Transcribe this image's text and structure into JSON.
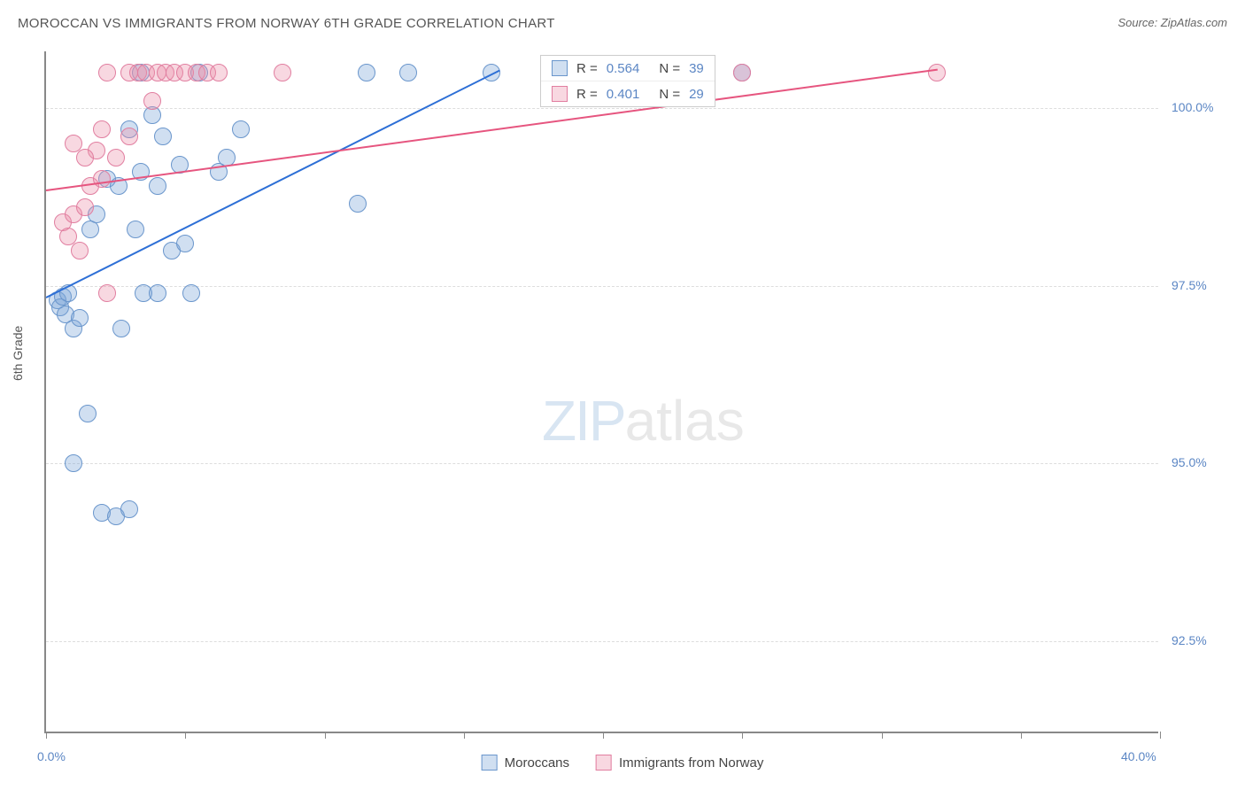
{
  "title": "MOROCCAN VS IMMIGRANTS FROM NORWAY 6TH GRADE CORRELATION CHART",
  "source": "Source: ZipAtlas.com",
  "y_axis_label": "6th Grade",
  "watermark": {
    "part1": "ZIP",
    "part2": "atlas"
  },
  "chart": {
    "type": "scatter",
    "xlim": [
      0,
      40
    ],
    "ylim": [
      91.2,
      100.8
    ],
    "x_ticks": [
      0,
      5,
      10,
      15,
      20,
      25,
      30,
      35,
      40
    ],
    "x_tick_labels": {
      "0": "0.0%",
      "40": "40.0%"
    },
    "y_ticks": [
      92.5,
      95.0,
      97.5,
      100.0
    ],
    "y_tick_labels": [
      "92.5%",
      "95.0%",
      "97.5%",
      "100.0%"
    ],
    "background_color": "#ffffff",
    "grid_color": "#dddddd",
    "axis_color": "#888888",
    "tick_label_color": "#5b86c4",
    "marker_size": 20,
    "series": [
      {
        "name": "Moroccans",
        "fill_color": "rgba(121,163,214,0.35)",
        "border_color": "#6a96cc",
        "line_color": "#2d6fd6",
        "R": "0.564",
        "N": "39",
        "trend": {
          "x1": 0,
          "y1": 97.35,
          "x2": 16.3,
          "y2": 100.55
        },
        "points": [
          [
            0.4,
            97.3
          ],
          [
            0.5,
            97.2
          ],
          [
            0.6,
            97.35
          ],
          [
            0.7,
            97.1
          ],
          [
            0.8,
            97.4
          ],
          [
            1.0,
            96.9
          ],
          [
            1.2,
            97.05
          ],
          [
            1.5,
            95.7
          ],
          [
            2.0,
            94.3
          ],
          [
            2.5,
            94.25
          ],
          [
            3.0,
            94.35
          ],
          [
            2.7,
            96.9
          ],
          [
            1.6,
            98.3
          ],
          [
            1.8,
            98.5
          ],
          [
            2.2,
            99.0
          ],
          [
            2.6,
            98.9
          ],
          [
            3.2,
            98.3
          ],
          [
            3.0,
            99.7
          ],
          [
            3.4,
            99.1
          ],
          [
            3.8,
            99.9
          ],
          [
            4.0,
            98.9
          ],
          [
            4.2,
            99.6
          ],
          [
            4.5,
            98.0
          ],
          [
            4.8,
            99.2
          ],
          [
            5.0,
            98.1
          ],
          [
            5.5,
            100.5
          ],
          [
            6.2,
            99.1
          ],
          [
            6.5,
            99.3
          ],
          [
            7.0,
            99.7
          ],
          [
            3.5,
            97.4
          ],
          [
            4.0,
            97.4
          ],
          [
            5.2,
            97.4
          ],
          [
            3.4,
            100.5
          ],
          [
            11.5,
            100.5
          ],
          [
            13.0,
            100.5
          ],
          [
            16.0,
            100.5
          ],
          [
            11.2,
            98.65
          ],
          [
            25.0,
            100.5
          ],
          [
            1.0,
            95.0
          ]
        ]
      },
      {
        "name": "Immigrants from Norway",
        "fill_color": "rgba(236,142,168,0.35)",
        "border_color": "#e17ea0",
        "line_color": "#e6557f",
        "R": "0.401",
        "N": "29",
        "trend": {
          "x1": 0,
          "y1": 98.85,
          "x2": 32,
          "y2": 100.55
        },
        "points": [
          [
            0.6,
            98.4
          ],
          [
            0.8,
            98.2
          ],
          [
            1.0,
            98.5
          ],
          [
            1.2,
            98.0
          ],
          [
            1.4,
            98.6
          ],
          [
            1.6,
            98.9
          ],
          [
            1.8,
            99.4
          ],
          [
            2.0,
            99.0
          ],
          [
            1.0,
            99.5
          ],
          [
            1.4,
            99.3
          ],
          [
            2.2,
            100.5
          ],
          [
            2.5,
            99.3
          ],
          [
            3.0,
            99.6
          ],
          [
            3.0,
            100.5
          ],
          [
            3.3,
            100.5
          ],
          [
            3.6,
            100.5
          ],
          [
            4.0,
            100.5
          ],
          [
            4.3,
            100.5
          ],
          [
            4.6,
            100.5
          ],
          [
            5.0,
            100.5
          ],
          [
            5.4,
            100.5
          ],
          [
            5.8,
            100.5
          ],
          [
            6.2,
            100.5
          ],
          [
            8.5,
            100.5
          ],
          [
            2.2,
            97.4
          ],
          [
            3.8,
            100.1
          ],
          [
            25.0,
            100.5
          ],
          [
            32.0,
            100.5
          ],
          [
            2.0,
            99.7
          ]
        ]
      }
    ]
  },
  "stats_legend_label_R": "R =",
  "stats_legend_label_N": "N ="
}
